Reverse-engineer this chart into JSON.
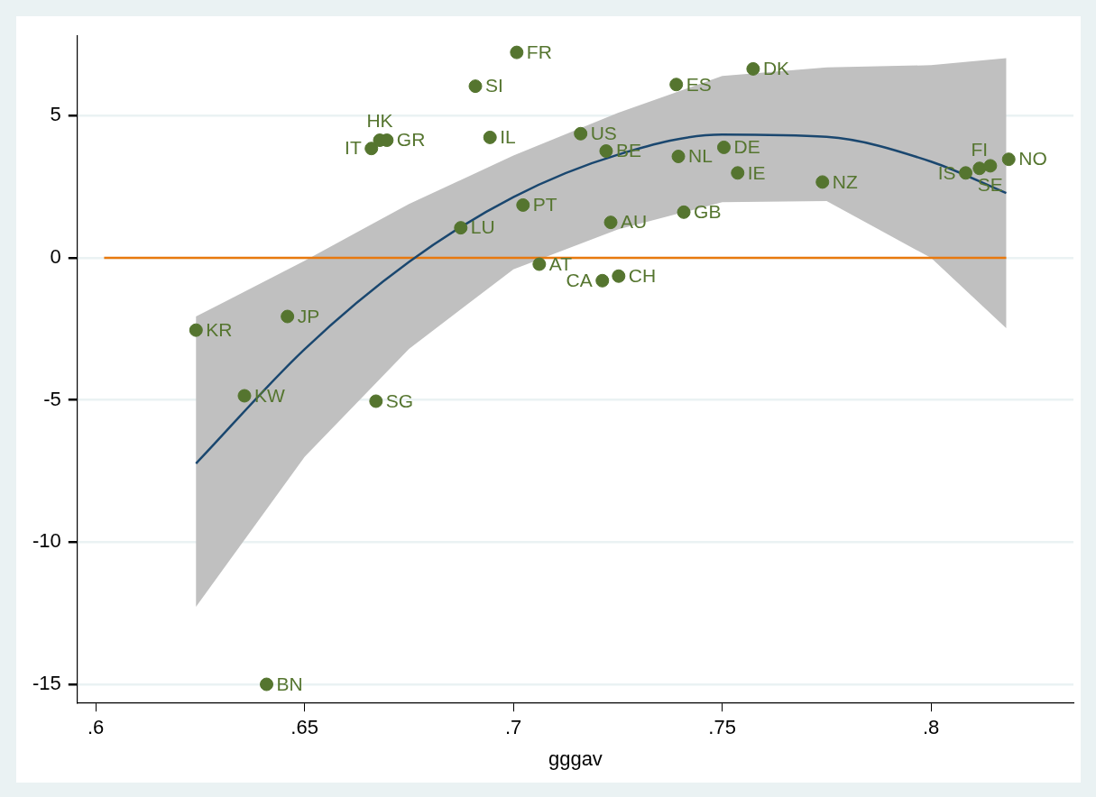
{
  "chart_data": {
    "type": "scatter",
    "xlabel": "gggav",
    "xlim": [
      0.5956,
      0.8341
    ],
    "ylim": [
      -15.64,
      7.83
    ],
    "xticks": [
      {
        "value": 0.6,
        "label": ".6"
      },
      {
        "value": 0.65,
        "label": ".65"
      },
      {
        "value": 0.7,
        "label": ".7"
      },
      {
        "value": 0.75,
        "label": ".75"
      },
      {
        "value": 0.8,
        "label": ".8"
      }
    ],
    "yticks": [
      -15,
      -10,
      -5,
      0,
      5
    ],
    "grid": "y",
    "legend": false,
    "series": [
      {
        "type": "line",
        "color": "#1a476f",
        "x": [
          0.624,
          0.65,
          0.675,
          0.7,
          0.725,
          0.75,
          0.775,
          0.8,
          0.818
        ],
        "values": [
          -7.23,
          -3.21,
          -0.14,
          2.14,
          3.63,
          4.34,
          4.26,
          3.39,
          2.28
        ],
        "lower": [
          -12.27,
          -7.0,
          -3.2,
          -0.4,
          1.0,
          1.96,
          2.0,
          0.0,
          -2.47
        ],
        "upper": [
          -2.06,
          -0.1,
          1.9,
          3.6,
          5.1,
          6.4,
          6.7,
          6.78,
          7.03
        ]
      },
      {
        "type": "line",
        "color": "#e8790e",
        "x": [
          0.602,
          0.818
        ],
        "values": [
          0,
          0
        ]
      },
      {
        "color": "#55752f",
        "marker": "circle",
        "x": [
          0.624,
          0.6459,
          0.6356,
          0.6671,
          0.6409,
          0.666,
          0.668,
          0.6697,
          0.6909,
          0.7008,
          0.6944,
          0.6874,
          0.7023,
          0.7062,
          0.7161,
          0.7222,
          0.7213,
          0.7252,
          0.7233,
          0.739,
          0.7574,
          0.7395,
          0.7504,
          0.7537,
          0.7408,
          0.774,
          0.8083,
          0.8116,
          0.8142,
          0.8186
        ],
        "values": [
          -2.54,
          -2.06,
          -4.85,
          -5.04,
          -15,
          3.85,
          4.14,
          4.14,
          6.04,
          7.23,
          4.24,
          1.06,
          1.86,
          -0.22,
          4.37,
          3.76,
          -0.8,
          -0.64,
          1.25,
          6.1,
          6.65,
          3.57,
          3.89,
          2.99,
          1.61,
          2.67,
          2.99,
          3.15,
          3.24,
          3.47
        ],
        "value_labels": [
          "KR",
          "JP",
          "KW",
          "SG",
          "BN",
          "IT",
          "HK",
          "GR",
          "SI",
          "FR",
          "IL",
          "LU",
          "PT",
          "AT",
          "US",
          "BE",
          "CA",
          "CH",
          "AU",
          "ES",
          "DK",
          "NL",
          "DE",
          "IE",
          "GB",
          "NZ",
          "IS",
          "FI",
          "SE",
          "NO"
        ]
      }
    ]
  }
}
